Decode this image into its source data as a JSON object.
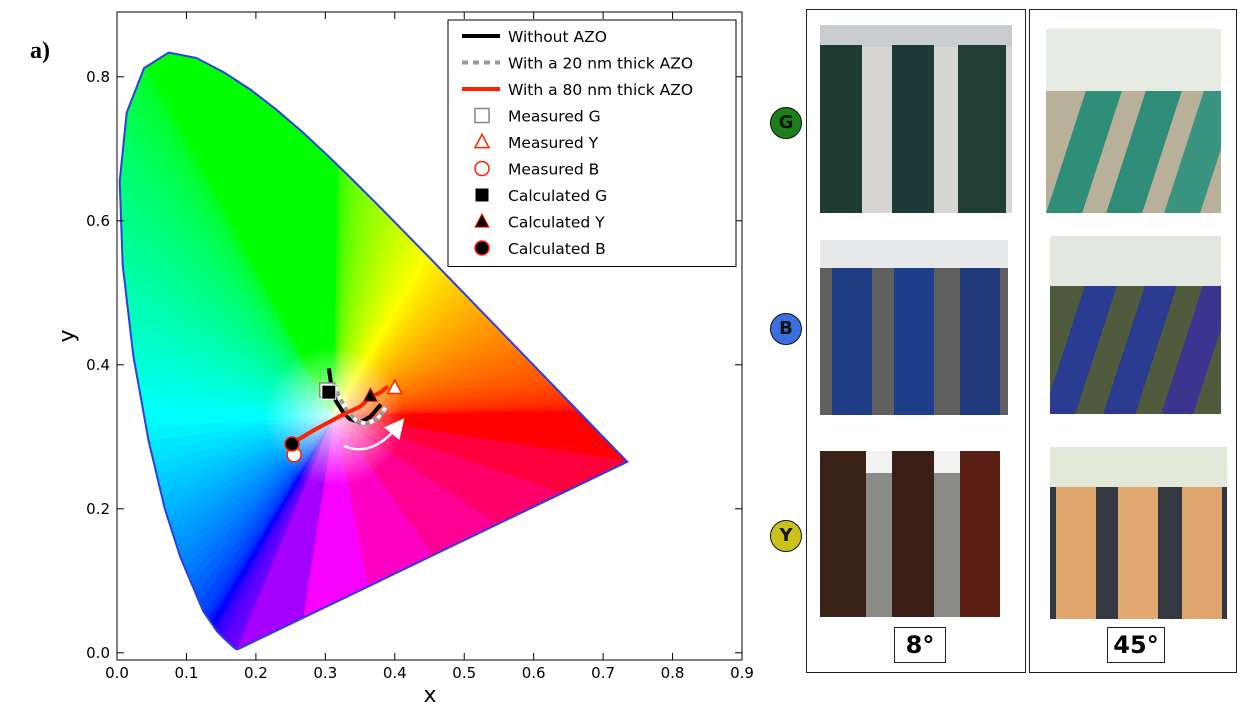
{
  "panel_label": "a)",
  "chart_data": {
    "type": "scatter",
    "xlabel": "x",
    "ylabel": "y",
    "xlim": [
      0.0,
      0.9
    ],
    "ylim": [
      -0.01,
      0.89
    ],
    "xticks": [
      "0.0",
      "0.1",
      "0.2",
      "0.3",
      "0.4",
      "0.5",
      "0.6",
      "0.7",
      "0.8",
      "0.9"
    ],
    "yticks": [
      "0.0",
      "0.2",
      "0.4",
      "0.6",
      "0.8"
    ],
    "background": "CIE 1931 chromaticity diagram",
    "grid": false,
    "legend_position": "top-right",
    "series": [
      {
        "name": "Without AZO",
        "kind": "line",
        "color": "#000000",
        "x": [
          0.305,
          0.308,
          0.315,
          0.325,
          0.335,
          0.35,
          0.365,
          0.38
        ],
        "y": [
          0.395,
          0.375,
          0.35,
          0.335,
          0.325,
          0.32,
          0.328,
          0.345
        ]
      },
      {
        "name": "With a 20 nm thick AZO",
        "kind": "dashed-line",
        "color": "#999999",
        "x": [
          0.312,
          0.32,
          0.332,
          0.345,
          0.36,
          0.375,
          0.388
        ],
        "y": [
          0.375,
          0.355,
          0.335,
          0.322,
          0.318,
          0.325,
          0.342
        ]
      },
      {
        "name": "With a 80 nm thick AZO",
        "kind": "line",
        "color": "#ff2200",
        "x": [
          0.25,
          0.285,
          0.32,
          0.35,
          0.365,
          0.38,
          0.39
        ],
        "y": [
          0.29,
          0.31,
          0.328,
          0.342,
          0.355,
          0.362,
          0.37
        ]
      },
      {
        "name": "Measured G",
        "kind": "marker",
        "marker": "open-square",
        "color": "#888888",
        "x": [
          0.302
        ],
        "y": [
          0.365
        ]
      },
      {
        "name": "Measured Y",
        "kind": "marker",
        "marker": "open-triangle",
        "color": "#ff2200",
        "x": [
          0.4
        ],
        "y": [
          0.368
        ]
      },
      {
        "name": "Measured B",
        "kind": "marker",
        "marker": "open-circle",
        "color": "#ff2200",
        "x": [
          0.255
        ],
        "y": [
          0.275
        ]
      },
      {
        "name": "Calculated G",
        "kind": "marker",
        "marker": "filled-square",
        "color": "#000000",
        "x": [
          0.305
        ],
        "y": [
          0.362
        ]
      },
      {
        "name": "Calculated Y",
        "kind": "marker",
        "marker": "filled-triangle",
        "color": "#000000",
        "x": [
          0.365
        ],
        "y": [
          0.357
        ]
      },
      {
        "name": "Calculated B",
        "kind": "marker",
        "marker": "filled-circle",
        "color": "#000000",
        "x": [
          0.252
        ],
        "y": [
          0.29
        ]
      }
    ],
    "locus": [
      [
        0.1741,
        0.005
      ],
      [
        0.174,
        0.005
      ],
      [
        0.1733,
        0.0048
      ],
      [
        0.1726,
        0.0048
      ],
      [
        0.1714,
        0.0051
      ],
      [
        0.1689,
        0.0069
      ],
      [
        0.1644,
        0.0109
      ],
      [
        0.1566,
        0.0177
      ],
      [
        0.144,
        0.0297
      ],
      [
        0.1241,
        0.0578
      ],
      [
        0.0913,
        0.1327
      ],
      [
        0.0687,
        0.2007
      ],
      [
        0.0454,
        0.295
      ],
      [
        0.0235,
        0.4127
      ],
      [
        0.0082,
        0.5384
      ],
      [
        0.0039,
        0.6548
      ],
      [
        0.0139,
        0.7502
      ],
      [
        0.0389,
        0.812
      ],
      [
        0.0743,
        0.8338
      ],
      [
        0.1142,
        0.8262
      ],
      [
        0.1547,
        0.8059
      ],
      [
        0.1929,
        0.7816
      ],
      [
        0.2296,
        0.7543
      ],
      [
        0.2658,
        0.7243
      ],
      [
        0.3016,
        0.6923
      ],
      [
        0.3373,
        0.6589
      ],
      [
        0.3731,
        0.6245
      ],
      [
        0.4087,
        0.5896
      ],
      [
        0.4441,
        0.5547
      ],
      [
        0.4788,
        0.5202
      ],
      [
        0.5125,
        0.4866
      ],
      [
        0.5448,
        0.4544
      ],
      [
        0.5752,
        0.4242
      ],
      [
        0.6029,
        0.3965
      ],
      [
        0.627,
        0.3725
      ],
      [
        0.6482,
        0.3514
      ],
      [
        0.6658,
        0.334
      ],
      [
        0.6801,
        0.3197
      ],
      [
        0.6915,
        0.3083
      ],
      [
        0.7006,
        0.2993
      ],
      [
        0.7079,
        0.292
      ],
      [
        0.714,
        0.2859
      ],
      [
        0.719,
        0.2809
      ],
      [
        0.723,
        0.277
      ],
      [
        0.726,
        0.274
      ],
      [
        0.7283,
        0.2717
      ],
      [
        0.73,
        0.27
      ],
      [
        0.7311,
        0.2689
      ],
      [
        0.732,
        0.268
      ],
      [
        0.7327,
        0.2673
      ],
      [
        0.7334,
        0.2666
      ],
      [
        0.734,
        0.266
      ],
      [
        0.7344,
        0.2656
      ],
      [
        0.7346,
        0.2654
      ],
      [
        0.7347,
        0.2653
      ]
    ]
  },
  "photos": {
    "rows": [
      {
        "label": "G",
        "color": "#1b7f1a"
      },
      {
        "label": "B",
        "color": "#3a6fe0"
      },
      {
        "label": "Y",
        "color": "#c8c21a"
      }
    ],
    "columns": [
      {
        "angle": "8°"
      },
      {
        "angle": "45°"
      }
    ]
  }
}
